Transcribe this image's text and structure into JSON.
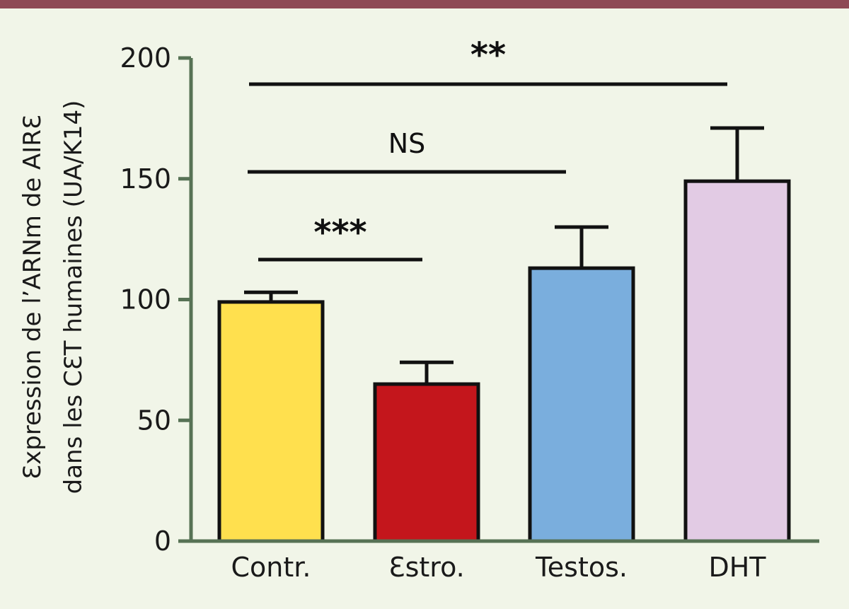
{
  "chart_data": {
    "type": "bar",
    "categories": [
      "Contr.",
      "Ɛstro.",
      "Testos.",
      "DHT"
    ],
    "values": [
      99,
      65,
      113,
      149
    ],
    "errors": [
      4,
      9,
      17,
      22
    ],
    "ylabel_lines": [
      "Ɛxpression de l’ARNm de AIRƐ",
      "dans les CƐT humaines (UA/K14)"
    ],
    "xlabel": "",
    "ylim": [
      0,
      200
    ],
    "yticks": [
      "0",
      "50",
      "100",
      "150",
      "200"
    ],
    "grid": false,
    "colors": {
      "bars": [
        "#ffe04e",
        "#c4161c",
        "#7aaedd",
        "#e2cbe4"
      ],
      "axis": "#577255",
      "top_band": "#8e4a55",
      "background": "#f1f5e8"
    },
    "significance": [
      {
        "from": "Contr.",
        "to": "Estro.",
        "label": "***"
      },
      {
        "from": "Contr.",
        "to": "Testos.",
        "label": "NS"
      },
      {
        "from": "Contr.",
        "to": "DHT",
        "label": "**"
      }
    ]
  }
}
